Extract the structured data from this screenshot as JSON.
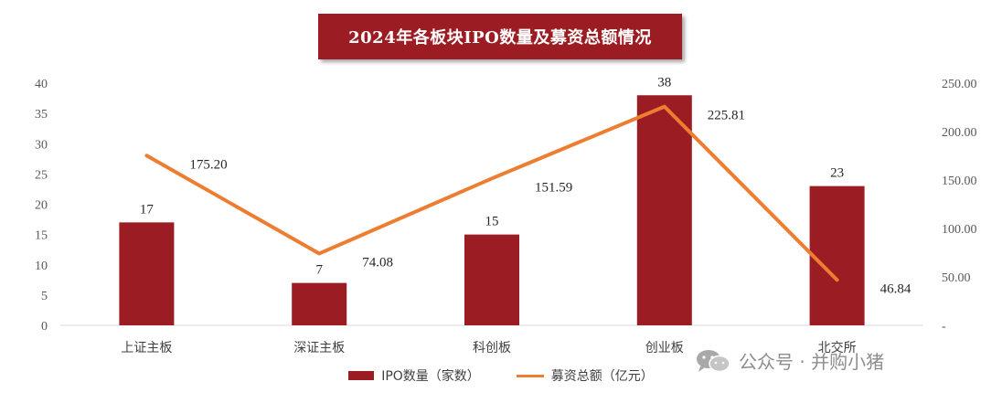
{
  "title": "2024年各板块IPO数量及募资总额情况",
  "chart_data": {
    "type": "bar",
    "title": "2024年各板块IPO数量及募资总额情况",
    "categories": [
      "上证主板",
      "深证主板",
      "科创板",
      "创业板",
      "北交所"
    ],
    "series": [
      {
        "name": "IPO数量（家数）",
        "type": "bar",
        "axis": "left",
        "values": [
          17,
          7,
          15,
          38,
          23
        ],
        "labels": [
          "17",
          "7",
          "15",
          "38",
          "23"
        ]
      },
      {
        "name": "募资总额（亿元）",
        "type": "line",
        "axis": "right",
        "values": [
          175.2,
          74.08,
          151.59,
          225.81,
          46.84
        ],
        "labels": [
          "175.20",
          "74.08",
          "151.59",
          "225.81",
          "46.84"
        ]
      }
    ],
    "y_left": {
      "ylim": [
        0,
        40
      ],
      "ticks": [
        "0",
        "5",
        "10",
        "15",
        "20",
        "25",
        "30",
        "35",
        "40"
      ]
    },
    "y_right": {
      "ylim": [
        0,
        250
      ],
      "ticks": [
        "-",
        "50.00",
        "100.00",
        "150.00",
        "200.00",
        "250.00"
      ]
    },
    "grid": false,
    "legend": "bottom",
    "colors": {
      "bar": "#9b1c23",
      "line": "#ed7d31",
      "title_bg": "#9b1c23"
    }
  },
  "legend": {
    "bar_label": "IPO数量（家数）",
    "line_label": "募资总额（亿元）"
  },
  "watermark": {
    "text": "公众号 · 并购小猪",
    "icon": "wechat-icon"
  }
}
